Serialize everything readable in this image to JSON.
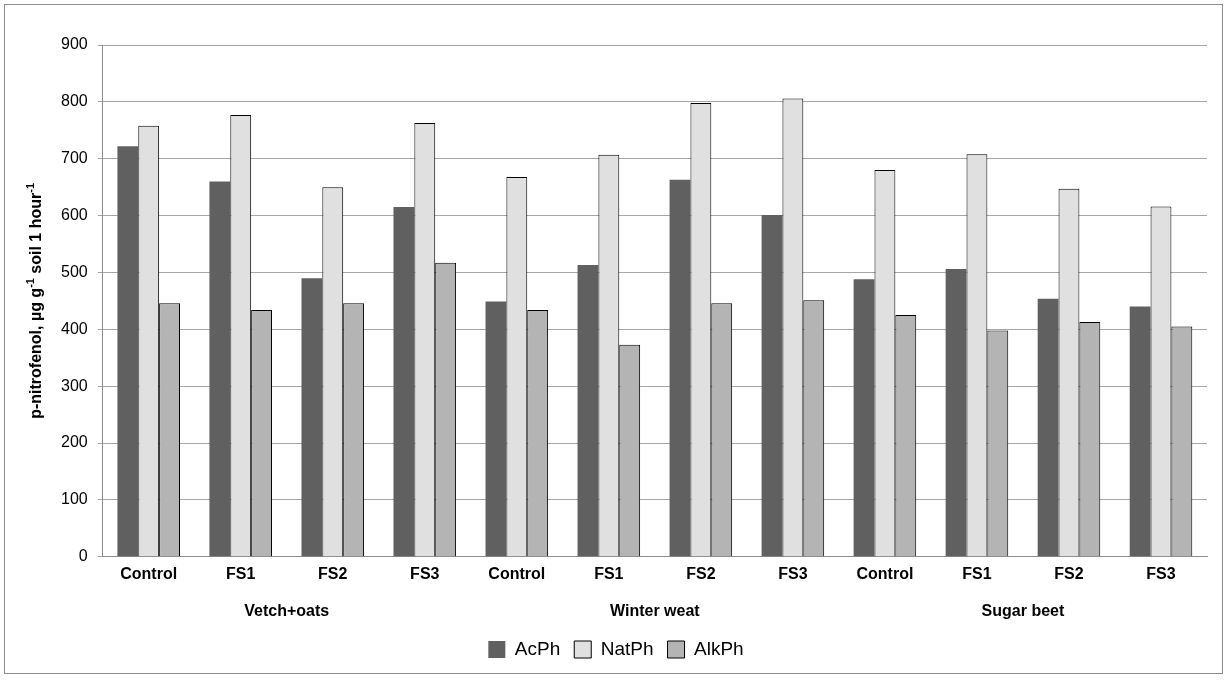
{
  "chart_data": {
    "type": "bar",
    "ylabel": "p-nitrofenol, µg g$^{-1}$ soil 1 hour$^{-1}$",
    "categories": [
      "Control",
      "FS1",
      "FS2",
      "FS3",
      "Control",
      "FS1",
      "FS2",
      "FS3",
      "Control",
      "FS1",
      "FS2",
      "FS3"
    ],
    "annotations": [
      "Vetch+oats",
      "Winter weat",
      "Sugar beet"
    ],
    "series": [
      {
        "name": "AcPh",
        "color": "#606060",
        "values": [
          722,
          660,
          490,
          615,
          449,
          513,
          663,
          601,
          488,
          506,
          454,
          440
        ]
      },
      {
        "name": "NatPh",
        "color": "#e0e0e0",
        "values": [
          758,
          777,
          650,
          763,
          668,
          707,
          798,
          806,
          680,
          708,
          647,
          616
        ]
      },
      {
        "name": "AlkPh",
        "color": "#b4b4b4",
        "values": [
          446,
          434,
          446,
          517,
          434,
          373,
          446,
          451,
          425,
          398,
          413,
          405
        ]
      }
    ],
    "ylim": [
      0,
      900
    ],
    "yticks": [
      0,
      100,
      200,
      300,
      400,
      500,
      600,
      700,
      800,
      900
    ],
    "grid": "y",
    "legend": "bottom"
  }
}
